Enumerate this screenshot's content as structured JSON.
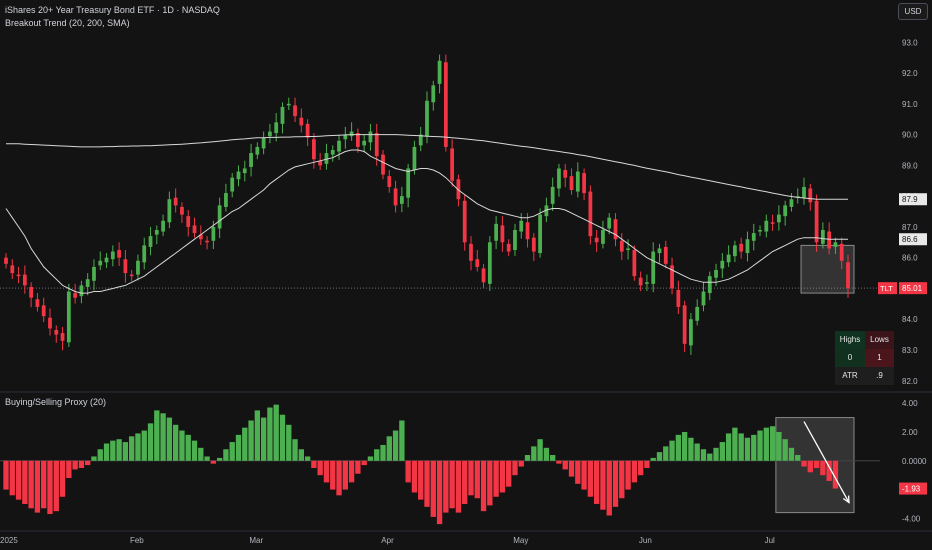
{
  "header": {
    "title": "iShares 20+ Year Treasury Bond ETF · 1D · NASDAQ",
    "indicator": "Breakout Trend (20, 200, SMA)",
    "currency": "USD"
  },
  "lower_panel": {
    "title": "Buying/Selling Proxy (20)"
  },
  "stats_table": {
    "highs_label": "Highs",
    "lows_label": "Lows",
    "highs_value": "0",
    "lows_value": "1",
    "atr_label": "ATR",
    "atr_value": ".9"
  },
  "colors": {
    "up": "#4caf50",
    "down": "#f23645",
    "bg": "#131313",
    "ma": "#d8d8d8",
    "text": "#b2b5be"
  },
  "chart_data": [
    {
      "type": "candlestick",
      "title": "iShares 20+ Year Treasury Bond ETF · 1D · NASDAQ",
      "ylim": [
        81.7,
        93.4
      ],
      "y_ticks": [
        "93.0",
        "92.0",
        "91.0",
        "90.0",
        "89.0",
        "88.0",
        "87.0",
        "86.0",
        "85.0",
        "84.0",
        "83.0",
        "82.0"
      ],
      "x_ticks": [
        {
          "label": "2025",
          "index": 0
        },
        {
          "label": "Feb",
          "index": 21
        },
        {
          "label": "Mar",
          "index": 40
        },
        {
          "label": "Apr",
          "index": 61
        },
        {
          "label": "May",
          "index": 82
        },
        {
          "label": "Jun",
          "index": 102
        },
        {
          "label": "Jul",
          "index": 122
        }
      ],
      "price_labels": [
        {
          "symbol": "TLT",
          "value": "85.01",
          "color": "#f23645"
        },
        {
          "value": "87.9",
          "color": "#d8d8d8"
        },
        {
          "value": "86.6",
          "color": "#d8d8d8"
        }
      ],
      "close": [
        85.8,
        85.5,
        85.4,
        85.1,
        84.7,
        84.4,
        84.1,
        83.7,
        83.5,
        83.3,
        84.9,
        84.7,
        85.1,
        85.3,
        85.7,
        85.9,
        86.0,
        86.2,
        86.0,
        85.5,
        85.4,
        85.9,
        86.4,
        86.7,
        86.9,
        87.2,
        87.9,
        87.7,
        87.4,
        87.0,
        86.8,
        86.6,
        86.5,
        87.0,
        87.7,
        88.1,
        88.6,
        88.8,
        88.9,
        89.4,
        89.6,
        89.9,
        90.1,
        90.4,
        90.9,
        91.0,
        90.6,
        90.3,
        89.9,
        89.2,
        89.0,
        89.4,
        89.5,
        89.8,
        90.0,
        90.1,
        89.6,
        89.8,
        90.1,
        89.3,
        88.7,
        88.3,
        87.7,
        88.0,
        88.9,
        89.6,
        90.0,
        91.1,
        91.6,
        92.4,
        89.6,
        88.5,
        87.9,
        86.5,
        85.9,
        85.7,
        85.2,
        86.5,
        87.1,
        86.5,
        86.2,
        86.9,
        87.2,
        86.6,
        86.2,
        87.4,
        87.7,
        88.3,
        88.9,
        88.6,
        88.2,
        88.8,
        88.1,
        86.7,
        86.5,
        86.9,
        87.3,
        86.6,
        86.2,
        86.3,
        85.4,
        85.1,
        85.2,
        86.2,
        86.3,
        85.8,
        85.0,
        84.4,
        83.2,
        84.0,
        84.4,
        84.9,
        85.4,
        85.6,
        85.9,
        86.1,
        86.4,
        86.2,
        86.6,
        86.8,
        86.9,
        87.2,
        87.1,
        87.4,
        87.7,
        87.9,
        88.0,
        88.3,
        87.8,
        86.5,
        86.9,
        86.3,
        86.5,
        85.9,
        85.01
      ],
      "sma20": [
        87.6,
        87.3,
        87.0,
        86.7,
        86.3,
        86.0,
        85.7,
        85.5,
        85.3,
        85.1,
        85.0,
        84.9,
        84.85,
        84.85,
        84.9,
        84.9,
        84.95,
        85.0,
        85.05,
        85.1,
        85.2,
        85.3,
        85.4,
        85.55,
        85.7,
        85.85,
        86.0,
        86.15,
        86.3,
        86.45,
        86.6,
        86.75,
        86.9,
        87.05,
        87.2,
        87.35,
        87.5,
        87.6,
        87.75,
        87.9,
        88.05,
        88.2,
        88.4,
        88.55,
        88.7,
        88.85,
        88.95,
        89.0,
        89.05,
        89.1,
        89.15,
        89.2,
        89.25,
        89.35,
        89.45,
        89.5,
        89.5,
        89.45,
        89.3,
        89.2,
        89.1,
        89.0,
        88.9,
        88.85,
        88.8,
        88.85,
        88.9,
        88.9,
        88.85,
        88.75,
        88.6,
        88.4,
        88.2,
        88.05,
        87.9,
        87.75,
        87.65,
        87.55,
        87.5,
        87.45,
        87.4,
        87.35,
        87.3,
        87.3,
        87.35,
        87.45,
        87.55,
        87.6,
        87.6,
        87.55,
        87.45,
        87.35,
        87.25,
        87.15,
        87.05,
        86.95,
        86.85,
        86.75,
        86.6,
        86.45,
        86.3,
        86.15,
        86.0,
        85.9,
        85.8,
        85.7,
        85.6,
        85.5,
        85.4,
        85.3,
        85.25,
        85.2,
        85.2,
        85.2,
        85.25,
        85.3,
        85.4,
        85.5,
        85.6,
        85.75,
        85.9,
        86.05,
        86.2,
        86.3,
        86.4,
        86.5,
        86.6,
        86.65,
        86.65,
        86.65,
        86.62,
        86.6,
        86.6,
        86.6,
        86.6
      ],
      "sma200": [
        89.7,
        89.7,
        89.7,
        89.69,
        89.68,
        89.67,
        89.66,
        89.65,
        89.64,
        89.63,
        89.62,
        89.61,
        89.6,
        89.6,
        89.6,
        89.6,
        89.61,
        89.61,
        89.62,
        89.62,
        89.63,
        89.63,
        89.64,
        89.64,
        89.65,
        89.66,
        89.67,
        89.68,
        89.69,
        89.7,
        89.72,
        89.73,
        89.75,
        89.77,
        89.79,
        89.81,
        89.83,
        89.85,
        89.86,
        89.88,
        89.9,
        89.9,
        89.91,
        89.91,
        89.92,
        89.92,
        89.93,
        89.93,
        89.94,
        89.94,
        89.95,
        89.96,
        89.97,
        89.98,
        89.99,
        90.0,
        90.0,
        90.0,
        90.0,
        90.0,
        90.0,
        90.0,
        90.0,
        89.99,
        89.98,
        89.97,
        89.96,
        89.95,
        89.94,
        89.93,
        89.92,
        89.9,
        89.88,
        89.86,
        89.84,
        89.82,
        89.8,
        89.77,
        89.74,
        89.71,
        89.68,
        89.65,
        89.62,
        89.6,
        89.57,
        89.54,
        89.51,
        89.48,
        89.45,
        89.42,
        89.39,
        89.35,
        89.32,
        89.28,
        89.24,
        89.2,
        89.16,
        89.12,
        89.08,
        89.04,
        89.0,
        88.95,
        88.91,
        88.87,
        88.83,
        88.79,
        88.75,
        88.7,
        88.66,
        88.62,
        88.58,
        88.54,
        88.5,
        88.46,
        88.42,
        88.38,
        88.34,
        88.3,
        88.26,
        88.22,
        88.18,
        88.14,
        88.1,
        88.06,
        88.02,
        87.99,
        87.96,
        87.94,
        87.92,
        87.9,
        87.9,
        87.9,
        87.9,
        87.9,
        87.9
      ]
    },
    {
      "type": "bar",
      "title": "Buying/Selling Proxy (20)",
      "ylim": [
        -4.6,
        4.5
      ],
      "y_ticks": [
        "4.00",
        "2.00",
        "0.0000",
        "-2.00",
        "-4.00"
      ],
      "last_value": "-1.93",
      "values": [
        -2.0,
        -2.4,
        -2.7,
        -3.0,
        -3.3,
        -3.6,
        -3.3,
        -3.7,
        -3.5,
        -2.5,
        -1.2,
        -0.6,
        -0.5,
        -0.3,
        0.3,
        0.8,
        1.2,
        1.4,
        1.5,
        1.3,
        1.7,
        1.9,
        2.1,
        2.6,
        3.5,
        3.3,
        3.0,
        2.5,
        2.1,
        1.8,
        1.4,
        0.9,
        0.3,
        -0.2,
        0.2,
        0.8,
        1.3,
        1.8,
        2.3,
        2.8,
        3.5,
        3.0,
        3.7,
        3.9,
        3.2,
        2.5,
        1.5,
        0.8,
        0.3,
        -0.5,
        -1.0,
        -1.5,
        -2.0,
        -2.4,
        -2.0,
        -1.5,
        -0.9,
        -0.3,
        0.3,
        0.8,
        1.1,
        1.7,
        2.1,
        2.8,
        -1.5,
        -2.2,
        -2.7,
        -3.2,
        -3.9,
        -4.4,
        -3.6,
        -3.3,
        -3.6,
        -3.0,
        -2.4,
        -2.6,
        -3.5,
        -3.1,
        -2.5,
        -2.2,
        -1.8,
        -1.0,
        -0.4,
        0.4,
        1.0,
        1.5,
        0.9,
        0.4,
        -0.2,
        -0.6,
        -1.1,
        -1.6,
        -2.0,
        -2.5,
        -3.0,
        -3.4,
        -3.8,
        -3.2,
        -2.6,
        -2.0,
        -1.5,
        -1.0,
        -0.5,
        0.2,
        0.6,
        1.0,
        1.4,
        1.8,
        2.0,
        1.6,
        1.2,
        0.8,
        0.5,
        0.9,
        1.3,
        1.9,
        2.3,
        1.9,
        1.6,
        1.8,
        2.1,
        2.3,
        2.4,
        2.0,
        1.5,
        0.9,
        0.4,
        -0.4,
        -0.8,
        -0.5,
        -1.0,
        -1.4,
        -1.93
      ]
    }
  ]
}
